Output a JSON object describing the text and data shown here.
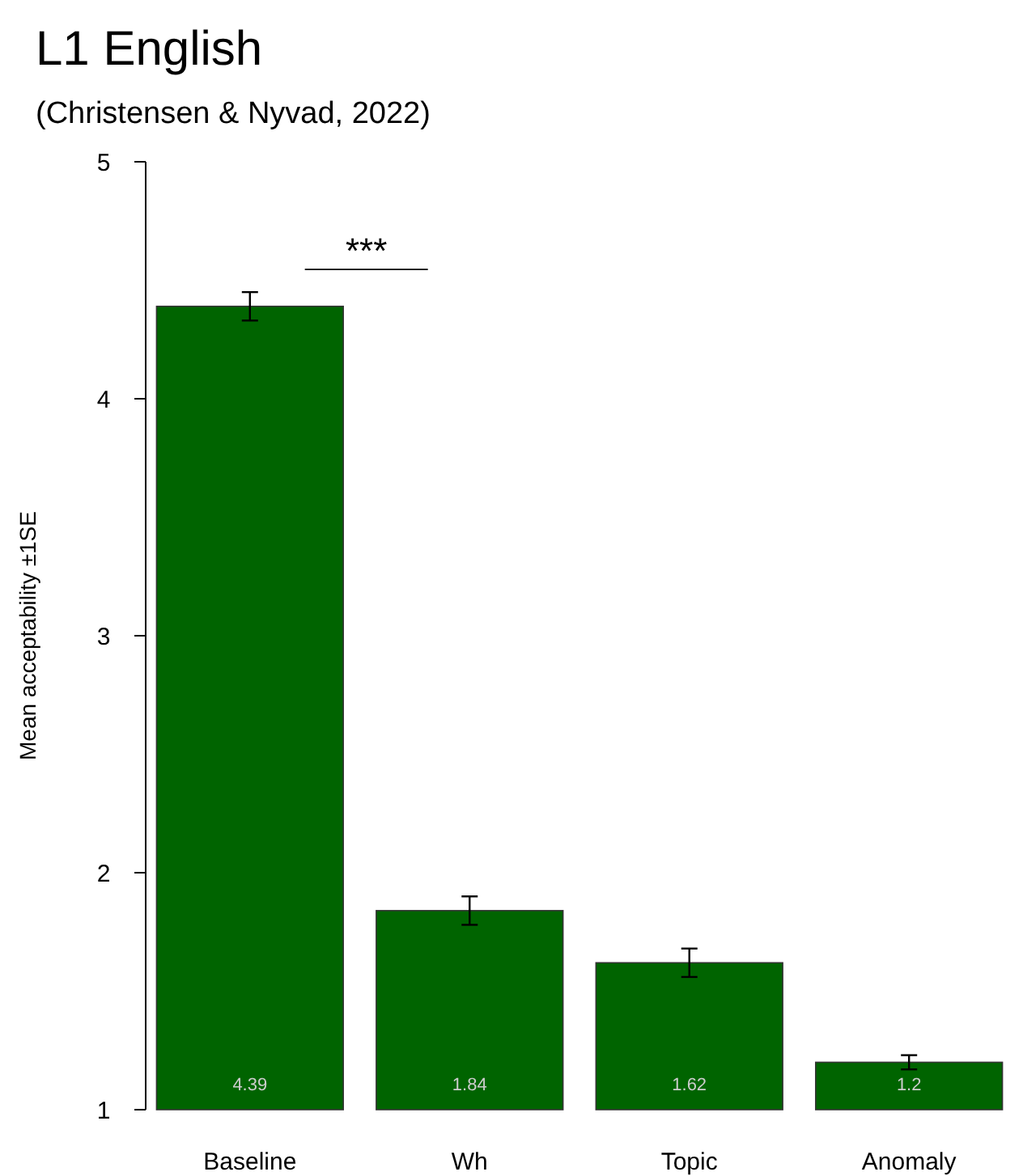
{
  "chart_data": {
    "type": "bar",
    "title": "L1 English",
    "subtitle": "(Christensen & Nyvad, 2022)",
    "ylabel": "Mean acceptability ±1SE",
    "categories": [
      "Baseline",
      "Wh",
      "Topic",
      "Anomaly"
    ],
    "values": [
      4.39,
      1.84,
      1.62,
      1.2
    ],
    "errors": [
      0.06,
      0.06,
      0.06,
      0.03
    ],
    "color": "#006400",
    "ylim": [
      1,
      5
    ],
    "yticks": [
      1,
      2,
      3,
      4,
      5
    ],
    "grid": false,
    "data_labels": true,
    "annotations": [
      "***"
    ]
  }
}
